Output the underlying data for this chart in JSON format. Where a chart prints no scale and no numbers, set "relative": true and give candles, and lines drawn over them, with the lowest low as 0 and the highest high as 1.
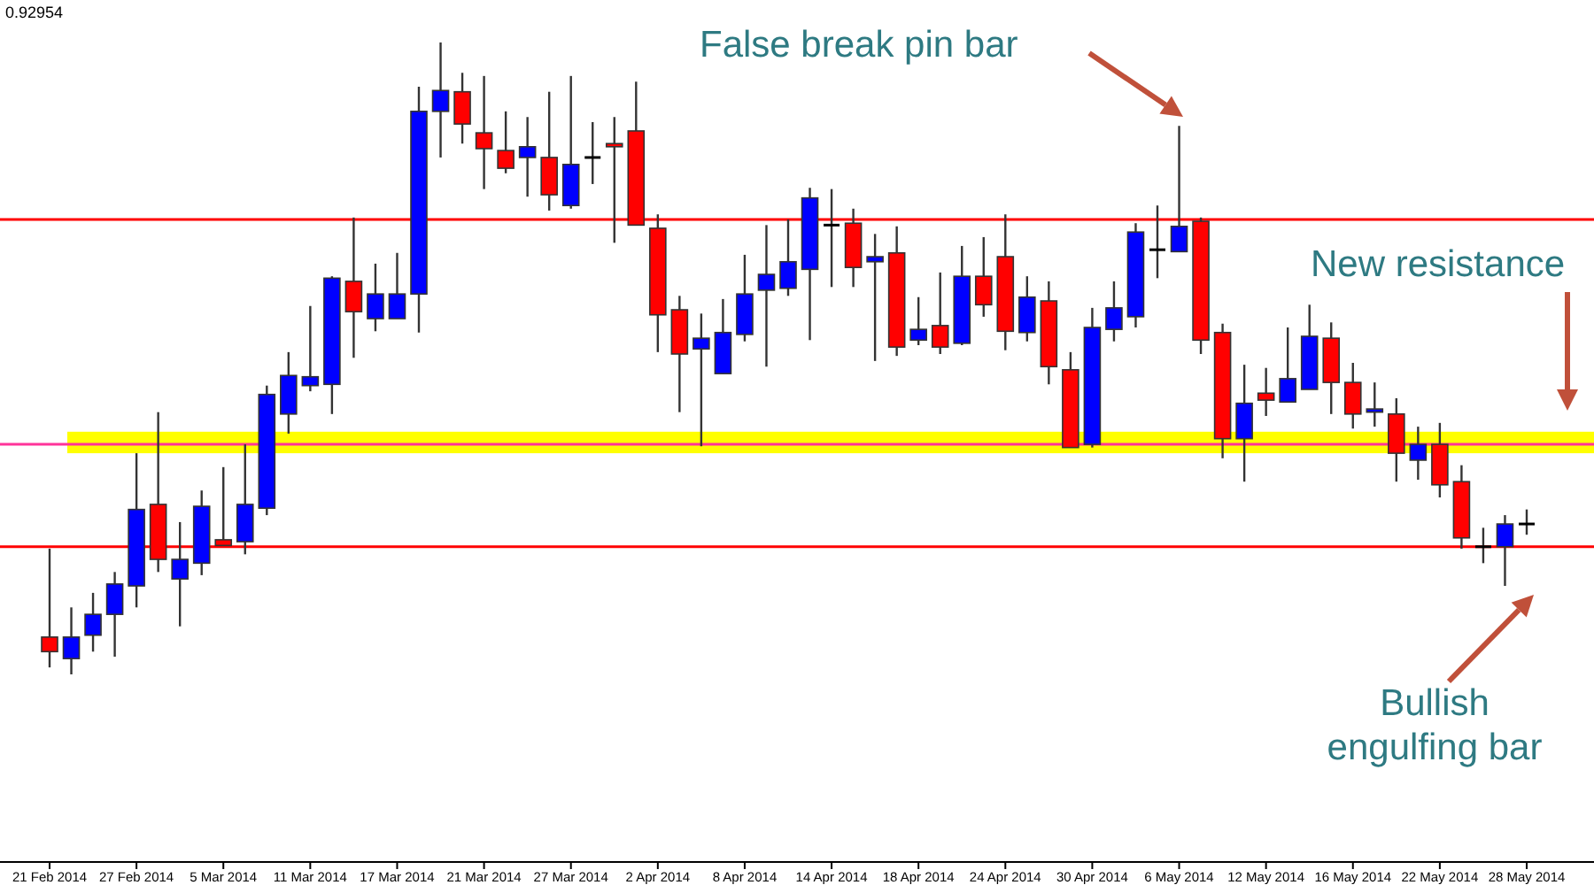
{
  "chart_data": {
    "type": "candlestick",
    "relative": true,
    "categories": [
      "21 Feb 2014",
      null,
      null,
      null,
      "27 Feb 2014",
      null,
      null,
      null,
      "5 Mar 2014",
      null,
      null,
      null,
      "11 Mar 2014",
      null,
      null,
      null,
      "17 Mar 2014",
      null,
      null,
      null,
      "21 Mar 2014",
      null,
      null,
      null,
      "27 Mar 2014",
      null,
      null,
      null,
      "2 Apr 2014",
      null,
      null,
      null,
      "8 Apr 2014",
      null,
      null,
      null,
      "14 Apr 2014",
      null,
      null,
      null,
      "18 Apr 2014",
      null,
      null,
      null,
      "24 Apr 2014",
      null,
      null,
      null,
      "30 Apr 2014",
      null,
      null,
      null,
      "6 May 2014",
      null,
      null,
      null,
      "12 May 2014",
      null,
      null,
      null,
      "16 May 2014",
      null,
      null,
      null,
      "22 May 2014",
      null,
      null,
      null,
      "28 May 2014"
    ],
    "ohlc": [
      [
        0.059,
        0.199,
        0.011,
        0.036
      ],
      [
        0.025,
        0.106,
        0,
        0.059
      ],
      [
        0.062,
        0.129,
        0.036,
        0.095
      ],
      [
        0.095,
        0.162,
        0.028,
        0.143
      ],
      [
        0.14,
        0.35,
        0.106,
        0.261
      ],
      [
        0.269,
        0.415,
        0.162,
        0.182
      ],
      [
        0.151,
        0.241,
        0.076,
        0.182
      ],
      [
        0.176,
        0.291,
        0.157,
        0.266
      ],
      [
        0.213,
        0.328,
        0.204,
        0.204
      ],
      [
        0.21,
        0.364,
        0.19,
        0.269
      ],
      [
        0.263,
        0.457,
        0.252,
        0.443
      ],
      [
        0.412,
        0.51,
        0.381,
        0.473
      ],
      [
        0.457,
        0.583,
        0.448,
        0.471
      ],
      [
        0.459,
        0.63,
        0.412,
        0.627
      ],
      [
        0.622,
        0.723,
        0.501,
        0.574
      ],
      [
        0.563,
        0.65,
        0.543,
        0.602
      ],
      [
        0.563,
        0.667,
        0.563,
        0.602
      ],
      [
        0.602,
        0.93,
        0.541,
        0.891
      ],
      [
        0.891,
        1,
        0.818,
        0.924
      ],
      [
        0.922,
        0.952,
        0.84,
        0.871
      ],
      [
        0.857,
        0.947,
        0.768,
        0.832
      ],
      [
        0.829,
        0.891,
        0.793,
        0.801
      ],
      [
        0.818,
        0.882,
        0.756,
        0.835
      ],
      [
        0.818,
        0.922,
        0.734,
        0.759
      ],
      [
        0.742,
        0.947,
        0.737,
        0.807
      ],
      [
        0.818,
        0.874,
        0.776,
        0.818
      ],
      [
        0.84,
        0.882,
        0.683,
        0.835
      ],
      [
        0.86,
        0.938,
        0.711,
        0.711
      ],
      [
        0.706,
        0.728,
        0.51,
        0.569
      ],
      [
        0.577,
        0.599,
        0.415,
        0.507
      ],
      [
        0.515,
        0.571,
        0.361,
        0.532
      ],
      [
        0.476,
        0.594,
        0.476,
        0.541
      ],
      [
        0.538,
        0.664,
        0.527,
        0.602
      ],
      [
        0.608,
        0.711,
        0.487,
        0.633
      ],
      [
        0.611,
        0.72,
        0.599,
        0.653
      ],
      [
        0.641,
        0.77,
        0.529,
        0.754
      ],
      [
        0.711,
        0.768,
        0.613,
        0.711
      ],
      [
        0.714,
        0.737,
        0.613,
        0.644
      ],
      [
        0.653,
        0.697,
        0.496,
        0.661
      ],
      [
        0.667,
        0.709,
        0.504,
        0.518
      ],
      [
        0.529,
        0.597,
        0.521,
        0.546
      ],
      [
        0.552,
        0.636,
        0.507,
        0.518
      ],
      [
        0.524,
        0.678,
        0.521,
        0.63
      ],
      [
        0.63,
        0.692,
        0.566,
        0.585
      ],
      [
        0.661,
        0.728,
        0.513,
        0.543
      ],
      [
        0.541,
        0.63,
        0.527,
        0.597
      ],
      [
        0.591,
        0.622,
        0.459,
        0.487
      ],
      [
        0.482,
        0.51,
        0.359,
        0.359
      ],
      [
        0.364,
        0.58,
        0.359,
        0.549
      ],
      [
        0.546,
        0.622,
        0.527,
        0.58
      ],
      [
        0.566,
        0.714,
        0.549,
        0.7
      ],
      [
        0.672,
        0.742,
        0.627,
        0.672
      ],
      [
        0.669,
        0.868,
        0.669,
        0.709
      ],
      [
        0.717,
        0.723,
        0.507,
        0.529
      ],
      [
        0.541,
        0.555,
        0.342,
        0.373
      ],
      [
        0.373,
        0.49,
        0.305,
        0.429
      ],
      [
        0.445,
        0.485,
        0.409,
        0.434
      ],
      [
        0.431,
        0.549,
        0.431,
        0.468
      ],
      [
        0.451,
        0.585,
        0.451,
        0.535
      ],
      [
        0.532,
        0.557,
        0.412,
        0.462
      ],
      [
        0.462,
        0.493,
        0.389,
        0.412
      ],
      [
        0.415,
        0.462,
        0.392,
        0.42
      ],
      [
        0.412,
        0.437,
        0.305,
        0.35
      ],
      [
        0.339,
        0.392,
        0.308,
        0.364
      ],
      [
        0.364,
        0.398,
        0.28,
        0.3
      ],
      [
        0.305,
        0.331,
        0.199,
        0.216
      ],
      [
        0.202,
        0.232,
        0.176,
        0.202
      ],
      [
        0.202,
        0.252,
        0.14,
        0.238
      ],
      [
        0.238,
        0.261,
        0.221,
        0.238
      ]
    ],
    "colors": [
      "#ff0000",
      "#0000ff",
      "#0000ff",
      "#0000ff",
      "#0000ff",
      "#ff0000",
      "#0000ff",
      "#0000ff",
      "#ff0000",
      "#0000ff",
      "#0000ff",
      "#0000ff",
      "#0000ff",
      "#0000ff",
      "#ff0000",
      "#0000ff",
      "#0000ff",
      "#0000ff",
      "#0000ff",
      "#ff0000",
      "#ff0000",
      "#ff0000",
      "#0000ff",
      "#ff0000",
      "#0000ff",
      "#000000",
      "#ff0000",
      "#ff0000",
      "#ff0000",
      "#ff0000",
      "#0000ff",
      "#0000ff",
      "#0000ff",
      "#0000ff",
      "#0000ff",
      "#0000ff",
      "#000000",
      "#ff0000",
      "#0000ff",
      "#ff0000",
      "#0000ff",
      "#ff0000",
      "#0000ff",
      "#ff0000",
      "#ff0000",
      "#0000ff",
      "#ff0000",
      "#ff0000",
      "#0000ff",
      "#0000ff",
      "#0000ff",
      "#000000",
      "#0000ff",
      "#ff0000",
      "#ff0000",
      "#0000ff",
      "#ff0000",
      "#0000ff",
      "#0000ff",
      "#ff0000",
      "#ff0000",
      "#0000ff",
      "#ff0000",
      "#0000ff",
      "#ff0000",
      "#ff0000",
      "#000000",
      "#0000ff",
      "#000000"
    ],
    "bands": [
      {
        "axis": "y",
        "from": 0.35,
        "to": 0.384,
        "color": "#ffff00"
      }
    ],
    "ref_lines": [
      {
        "axis": "y",
        "value": 0.72,
        "color": "#ff0000"
      },
      {
        "axis": "y",
        "value": 0.364,
        "color": "#ff3399"
      },
      {
        "axis": "y",
        "value": 0.202,
        "color": "#ff0000"
      }
    ],
    "annotations": [
      "0.92954",
      "False break pin bar",
      "New resistance",
      "Bullish engulfing bar"
    ]
  }
}
